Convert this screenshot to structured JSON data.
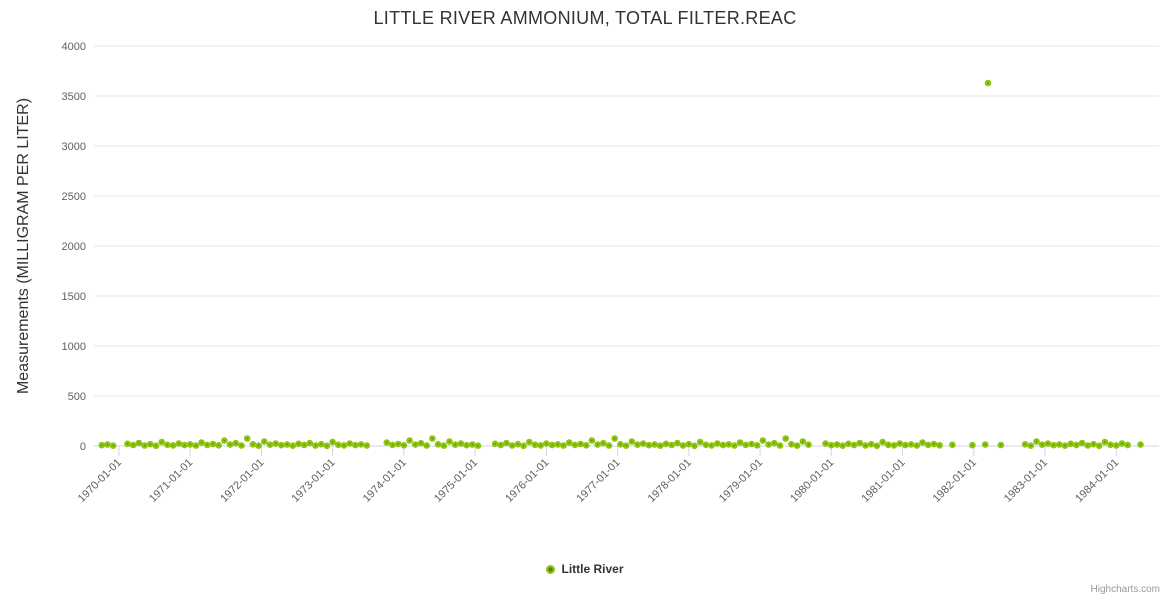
{
  "chart": {
    "title": "LITTLE RIVER AMMONIUM, TOTAL FILTER.REAC",
    "credits": "Highcharts.com",
    "colors": {
      "title": "#333333",
      "axis_label": "#606060",
      "gridline": "#e6e6e6",
      "tick_line": "#ccd6eb",
      "marker_outer": "#8CC410",
      "marker_center": "#4E7C06"
    }
  },
  "chart_data": {
    "type": "scatter",
    "title": "LITTLE RIVER AMMONIUM, TOTAL FILTER.REAC",
    "xlabel": "",
    "ylabel": "Measurements (MILLIGRAM PER LITER)",
    "series_name": "Little River",
    "legend_position": "bottom-center",
    "grid": "horizontal-only",
    "xlim": [
      1969.65,
      1984.6
    ],
    "ylim": [
      0,
      4000
    ],
    "yticks": [
      0,
      500,
      1000,
      1500,
      2000,
      2500,
      3000,
      3500,
      4000
    ],
    "xtick_values": [
      1970,
      1971,
      1972,
      1973,
      1974,
      1975,
      1976,
      1977,
      1978,
      1979,
      1980,
      1981,
      1982,
      1983,
      1984
    ],
    "xtick_labels": [
      "1970-01-01",
      "1971-01-01",
      "1972-01-01",
      "1973-01-01",
      "1974-01-01",
      "1975-01-01",
      "1976-01-01",
      "1977-01-01",
      "1978-01-01",
      "1979-01-01",
      "1980-01-01",
      "1981-01-01",
      "1982-01-01",
      "1983-01-01",
      "1984-01-01"
    ],
    "outlier_note": "single high point ~3630 mg/L in early 1982; all other values near 0",
    "points": [
      [
        1969.76,
        8
      ],
      [
        1969.84,
        15
      ],
      [
        1969.92,
        3
      ],
      [
        1970.12,
        22
      ],
      [
        1970.2,
        10
      ],
      [
        1970.28,
        30
      ],
      [
        1970.36,
        5
      ],
      [
        1970.44,
        18
      ],
      [
        1970.52,
        2
      ],
      [
        1970.6,
        40
      ],
      [
        1970.68,
        12
      ],
      [
        1970.76,
        6
      ],
      [
        1970.84,
        25
      ],
      [
        1970.92,
        9
      ],
      [
        1971.0,
        16
      ],
      [
        1971.08,
        4
      ],
      [
        1971.16,
        35
      ],
      [
        1971.24,
        11
      ],
      [
        1971.32,
        20
      ],
      [
        1971.4,
        7
      ],
      [
        1971.48,
        55
      ],
      [
        1971.56,
        14
      ],
      [
        1971.64,
        28
      ],
      [
        1971.72,
        5
      ],
      [
        1971.8,
        75
      ],
      [
        1971.88,
        17
      ],
      [
        1971.96,
        3
      ],
      [
        1972.04,
        45
      ],
      [
        1972.12,
        13
      ],
      [
        1972.2,
        24
      ],
      [
        1972.28,
        8
      ],
      [
        1972.36,
        15
      ],
      [
        1972.44,
        3
      ],
      [
        1972.52,
        22
      ],
      [
        1972.6,
        10
      ],
      [
        1972.68,
        30
      ],
      [
        1972.76,
        5
      ],
      [
        1972.84,
        18
      ],
      [
        1972.92,
        2
      ],
      [
        1973.0,
        40
      ],
      [
        1973.08,
        12
      ],
      [
        1973.16,
        6
      ],
      [
        1973.24,
        25
      ],
      [
        1973.32,
        9
      ],
      [
        1973.4,
        16
      ],
      [
        1973.48,
        4
      ],
      [
        1973.76,
        35
      ],
      [
        1973.84,
        11
      ],
      [
        1973.92,
        20
      ],
      [
        1974.0,
        7
      ],
      [
        1974.08,
        55
      ],
      [
        1974.16,
        14
      ],
      [
        1974.24,
        28
      ],
      [
        1974.32,
        5
      ],
      [
        1974.4,
        75
      ],
      [
        1974.48,
        17
      ],
      [
        1974.56,
        3
      ],
      [
        1974.64,
        45
      ],
      [
        1974.72,
        13
      ],
      [
        1974.8,
        24
      ],
      [
        1974.88,
        8
      ],
      [
        1974.96,
        15
      ],
      [
        1975.04,
        3
      ],
      [
        1975.28,
        22
      ],
      [
        1975.36,
        10
      ],
      [
        1975.44,
        30
      ],
      [
        1975.52,
        5
      ],
      [
        1975.6,
        18
      ],
      [
        1975.68,
        2
      ],
      [
        1975.76,
        40
      ],
      [
        1975.84,
        12
      ],
      [
        1975.92,
        6
      ],
      [
        1976.0,
        25
      ],
      [
        1976.08,
        9
      ],
      [
        1976.16,
        16
      ],
      [
        1976.24,
        4
      ],
      [
        1976.32,
        35
      ],
      [
        1976.4,
        11
      ],
      [
        1976.48,
        20
      ],
      [
        1976.56,
        7
      ],
      [
        1976.64,
        55
      ],
      [
        1976.72,
        14
      ],
      [
        1976.8,
        28
      ],
      [
        1976.88,
        5
      ],
      [
        1976.96,
        75
      ],
      [
        1977.04,
        17
      ],
      [
        1977.12,
        3
      ],
      [
        1977.2,
        45
      ],
      [
        1977.28,
        13
      ],
      [
        1977.36,
        24
      ],
      [
        1977.44,
        8
      ],
      [
        1977.52,
        15
      ],
      [
        1977.6,
        3
      ],
      [
        1977.68,
        22
      ],
      [
        1977.76,
        10
      ],
      [
        1977.84,
        30
      ],
      [
        1977.92,
        5
      ],
      [
        1978.0,
        18
      ],
      [
        1978.08,
        2
      ],
      [
        1978.16,
        40
      ],
      [
        1978.24,
        12
      ],
      [
        1978.32,
        6
      ],
      [
        1978.4,
        25
      ],
      [
        1978.48,
        9
      ],
      [
        1978.56,
        16
      ],
      [
        1978.64,
        4
      ],
      [
        1978.72,
        35
      ],
      [
        1978.8,
        11
      ],
      [
        1978.88,
        20
      ],
      [
        1978.96,
        7
      ],
      [
        1979.04,
        55
      ],
      [
        1979.12,
        14
      ],
      [
        1979.2,
        28
      ],
      [
        1979.28,
        5
      ],
      [
        1979.36,
        75
      ],
      [
        1979.44,
        17
      ],
      [
        1979.52,
        3
      ],
      [
        1979.6,
        45
      ],
      [
        1979.68,
        13
      ],
      [
        1979.92,
        24
      ],
      [
        1980.0,
        8
      ],
      [
        1980.08,
        15
      ],
      [
        1980.16,
        3
      ],
      [
        1980.24,
        22
      ],
      [
        1980.32,
        10
      ],
      [
        1980.4,
        30
      ],
      [
        1980.48,
        5
      ],
      [
        1980.56,
        18
      ],
      [
        1980.64,
        2
      ],
      [
        1980.72,
        40
      ],
      [
        1980.8,
        12
      ],
      [
        1980.88,
        6
      ],
      [
        1980.96,
        25
      ],
      [
        1981.04,
        9
      ],
      [
        1981.12,
        16
      ],
      [
        1981.2,
        4
      ],
      [
        1981.28,
        35
      ],
      [
        1981.36,
        11
      ],
      [
        1981.44,
        20
      ],
      [
        1981.52,
        7
      ],
      [
        1981.7,
        12
      ],
      [
        1981.98,
        8
      ],
      [
        1982.16,
        15
      ],
      [
        1982.2,
        3630
      ],
      [
        1982.38,
        10
      ],
      [
        1982.72,
        17
      ],
      [
        1982.8,
        3
      ],
      [
        1982.88,
        45
      ],
      [
        1982.96,
        13
      ],
      [
        1983.04,
        24
      ],
      [
        1983.12,
        8
      ],
      [
        1983.2,
        15
      ],
      [
        1983.28,
        3
      ],
      [
        1983.36,
        22
      ],
      [
        1983.44,
        10
      ],
      [
        1983.52,
        30
      ],
      [
        1983.6,
        5
      ],
      [
        1983.68,
        18
      ],
      [
        1983.76,
        2
      ],
      [
        1983.84,
        40
      ],
      [
        1983.92,
        12
      ],
      [
        1984.0,
        6
      ],
      [
        1984.08,
        25
      ],
      [
        1984.16,
        9
      ],
      [
        1984.34,
        14
      ]
    ]
  }
}
